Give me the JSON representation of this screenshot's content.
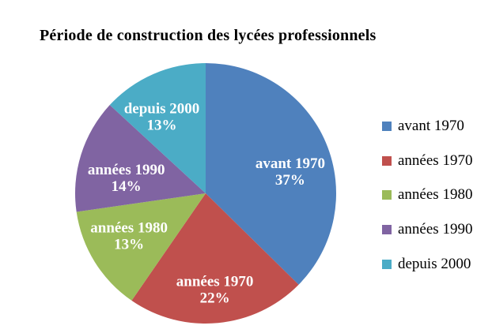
{
  "chart_data": {
    "type": "pie",
    "title": "Période de construction des lycées professionnels",
    "categories": [
      "avant 1970",
      "années 1970",
      "années 1980",
      "années 1990",
      "depuis 2000"
    ],
    "values": [
      37,
      22,
      13,
      14,
      13
    ],
    "value_suffix": "%",
    "colors": [
      "#4f81bd",
      "#c0504d",
      "#9bbb59",
      "#8064a2",
      "#4bacc6"
    ],
    "slice_label_color": "#ffffff",
    "text_color": "#000000",
    "background": "#ffffff",
    "start_angle_deg": 0,
    "direction": "clockwise",
    "labels_inside": true,
    "legend_position": "right",
    "legend_items": [
      {
        "label": "avant 1970"
      },
      {
        "label": "années 1970"
      },
      {
        "label": "années 1980"
      },
      {
        "label": "années 1990"
      },
      {
        "label": "depuis 2000"
      }
    ]
  }
}
